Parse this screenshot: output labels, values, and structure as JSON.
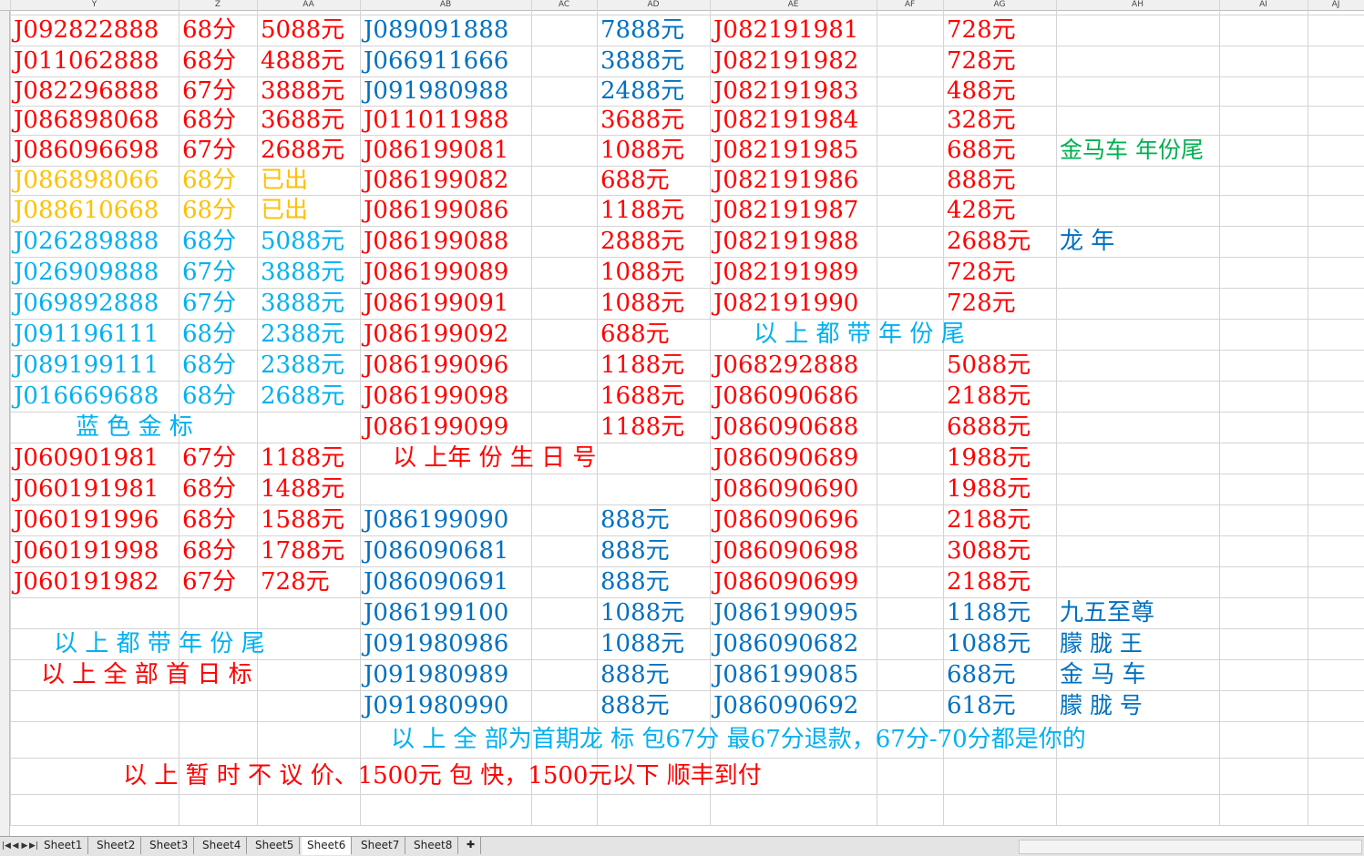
{
  "colors": {
    "red": "#ff0000",
    "blue": "#0070c0",
    "cyan": "#00b0f0",
    "yellow": "#ffc000",
    "green": "#00b050"
  },
  "columns": [
    "Y",
    "Z",
    "AA",
    "AB",
    "AC",
    "AD",
    "AE",
    "AF",
    "AG",
    "AH",
    "AI",
    "AJ"
  ],
  "rows": [
    {
      "Y": {
        "t": "J092822888",
        "c": "red"
      },
      "Z": {
        "t": "68分",
        "c": "red"
      },
      "AA": {
        "t": "5088元",
        "c": "red"
      },
      "AB": {
        "t": "J089091888",
        "c": "blue"
      },
      "AD": {
        "t": "7888元",
        "c": "blue"
      },
      "AE": {
        "t": "J082191981",
        "c": "red"
      },
      "AG": {
        "t": "728元",
        "c": "red"
      }
    },
    {
      "Y": {
        "t": "J011062888",
        "c": "red"
      },
      "Z": {
        "t": "68分",
        "c": "red"
      },
      "AA": {
        "t": "4888元",
        "c": "red"
      },
      "AB": {
        "t": "J066911666",
        "c": "blue"
      },
      "AD": {
        "t": "3888元",
        "c": "blue"
      },
      "AE": {
        "t": "J082191982",
        "c": "red"
      },
      "AG": {
        "t": "728元",
        "c": "red"
      }
    },
    {
      "Y": {
        "t": "J082296888",
        "c": "red"
      },
      "Z": {
        "t": "67分",
        "c": "red"
      },
      "AA": {
        "t": "3888元",
        "c": "red"
      },
      "AB": {
        "t": "J091980988",
        "c": "blue"
      },
      "AD": {
        "t": "2488元",
        "c": "blue"
      },
      "AE": {
        "t": "J082191983",
        "c": "red"
      },
      "AG": {
        "t": "488元",
        "c": "red"
      }
    },
    {
      "Y": {
        "t": "J086898068",
        "c": "red"
      },
      "Z": {
        "t": "68分",
        "c": "red"
      },
      "AA": {
        "t": "3688元",
        "c": "red"
      },
      "AB": {
        "t": "J011011988",
        "c": "red"
      },
      "AD": {
        "t": "3688元",
        "c": "red"
      },
      "AE": {
        "t": "J082191984",
        "c": "red"
      },
      "AG": {
        "t": "328元",
        "c": "red"
      }
    },
    {
      "Y": {
        "t": "J086096698",
        "c": "red"
      },
      "Z": {
        "t": "67分",
        "c": "red"
      },
      "AA": {
        "t": "2688元",
        "c": "red"
      },
      "AB": {
        "t": "J086199081",
        "c": "red"
      },
      "AD": {
        "t": "1088元",
        "c": "red"
      },
      "AE": {
        "t": "J082191985",
        "c": "red"
      },
      "AG": {
        "t": "688元",
        "c": "red"
      },
      "AH": {
        "t": "金马车 年份尾",
        "c": "green",
        "s": "small"
      }
    },
    {
      "Y": {
        "t": "J086898066",
        "c": "yellow"
      },
      "Z": {
        "t": "68分",
        "c": "yellow"
      },
      "AA": {
        "t": "已出",
        "c": "yellow"
      },
      "AB": {
        "t": "J086199082",
        "c": "red"
      },
      "AD": {
        "t": "688元",
        "c": "red"
      },
      "AE": {
        "t": "J082191986",
        "c": "red"
      },
      "AG": {
        "t": "888元",
        "c": "red"
      }
    },
    {
      "Y": {
        "t": "J088610668",
        "c": "yellow"
      },
      "Z": {
        "t": "68分",
        "c": "yellow"
      },
      "AA": {
        "t": "已出",
        "c": "yellow"
      },
      "AB": {
        "t": "J086199086",
        "c": "red"
      },
      "AD": {
        "t": "1188元",
        "c": "red"
      },
      "AE": {
        "t": "J082191987",
        "c": "red"
      },
      "AG": {
        "t": "428元",
        "c": "red"
      }
    },
    {
      "Y": {
        "t": "J026289888",
        "c": "cyan"
      },
      "Z": {
        "t": "68分",
        "c": "cyan"
      },
      "AA": {
        "t": "5088元",
        "c": "cyan"
      },
      "AB": {
        "t": "J086199088",
        "c": "red"
      },
      "AD": {
        "t": "2888元",
        "c": "red"
      },
      "AE": {
        "t": "J082191988",
        "c": "red"
      },
      "AG": {
        "t": "2688元",
        "c": "red"
      },
      "AH": {
        "t": "龙 年",
        "c": "blue"
      }
    },
    {
      "Y": {
        "t": "J026909888",
        "c": "cyan"
      },
      "Z": {
        "t": "67分",
        "c": "cyan"
      },
      "AA": {
        "t": "3888元",
        "c": "cyan"
      },
      "AB": {
        "t": "J086199089",
        "c": "red"
      },
      "AD": {
        "t": "1088元",
        "c": "red"
      },
      "AE": {
        "t": "J082191989",
        "c": "red"
      },
      "AG": {
        "t": "728元",
        "c": "red"
      }
    },
    {
      "Y": {
        "t": "J069892888",
        "c": "cyan"
      },
      "Z": {
        "t": "67分",
        "c": "cyan"
      },
      "AA": {
        "t": "3888元",
        "c": "cyan"
      },
      "AB": {
        "t": "J086199091",
        "c": "red"
      },
      "AD": {
        "t": "1088元",
        "c": "red"
      },
      "AE": {
        "t": "J082191990",
        "c": "red"
      },
      "AG": {
        "t": "728元",
        "c": "red"
      }
    },
    {
      "Y": {
        "t": "J091196111",
        "c": "cyan"
      },
      "Z": {
        "t": "68分",
        "c": "cyan"
      },
      "AA": {
        "t": "2388元",
        "c": "cyan"
      },
      "AB": {
        "t": "J086199092",
        "c": "red"
      },
      "AD": {
        "t": "688元",
        "c": "red"
      }
    },
    {
      "Y": {
        "t": "J089199111",
        "c": "cyan"
      },
      "Z": {
        "t": "68分",
        "c": "cyan"
      },
      "AA": {
        "t": "2388元",
        "c": "cyan"
      },
      "AB": {
        "t": "J086199096",
        "c": "red"
      },
      "AD": {
        "t": "1188元",
        "c": "red"
      },
      "AE": {
        "t": "J068292888",
        "c": "red"
      },
      "AG": {
        "t": "5088元",
        "c": "red"
      }
    },
    {
      "Y": {
        "t": "J016669688",
        "c": "cyan"
      },
      "Z": {
        "t": "68分",
        "c": "cyan"
      },
      "AA": {
        "t": "2688元",
        "c": "cyan"
      },
      "AB": {
        "t": "J086199098",
        "c": "red"
      },
      "AD": {
        "t": "1688元",
        "c": "red"
      },
      "AE": {
        "t": "J086090686",
        "c": "red"
      },
      "AG": {
        "t": "2188元",
        "c": "red"
      }
    },
    {
      "AB": {
        "t": "J086199099",
        "c": "red"
      },
      "AD": {
        "t": "1188元",
        "c": "red"
      },
      "AE": {
        "t": "J086090688",
        "c": "red"
      },
      "AG": {
        "t": "6888元",
        "c": "red"
      }
    },
    {
      "Y": {
        "t": "J060901981",
        "c": "red"
      },
      "Z": {
        "t": "67分",
        "c": "red"
      },
      "AA": {
        "t": "1188元",
        "c": "red"
      },
      "AE": {
        "t": "J086090689",
        "c": "red"
      },
      "AG": {
        "t": "1988元",
        "c": "red"
      }
    },
    {
      "Y": {
        "t": "J060191981",
        "c": "red"
      },
      "Z": {
        "t": "68分",
        "c": "red"
      },
      "AA": {
        "t": "1488元",
        "c": "red"
      },
      "AE": {
        "t": "J086090690",
        "c": "red"
      },
      "AG": {
        "t": "1988元",
        "c": "red"
      }
    },
    {
      "Y": {
        "t": "J060191996",
        "c": "red"
      },
      "Z": {
        "t": "68分",
        "c": "red"
      },
      "AA": {
        "t": "1588元",
        "c": "red"
      },
      "AB": {
        "t": "J086199090",
        "c": "blue"
      },
      "AD": {
        "t": "888元",
        "c": "blue"
      },
      "AE": {
        "t": "J086090696",
        "c": "red"
      },
      "AG": {
        "t": "2188元",
        "c": "red"
      }
    },
    {
      "Y": {
        "t": "J060191998",
        "c": "red"
      },
      "Z": {
        "t": "68分",
        "c": "red"
      },
      "AA": {
        "t": "1788元",
        "c": "red"
      },
      "AB": {
        "t": "J086090681",
        "c": "blue"
      },
      "AD": {
        "t": "888元",
        "c": "blue"
      },
      "AE": {
        "t": "J086090698",
        "c": "red"
      },
      "AG": {
        "t": "3088元",
        "c": "red"
      }
    },
    {
      "Y": {
        "t": "J060191982",
        "c": "red"
      },
      "Z": {
        "t": "67分",
        "c": "red"
      },
      "AA": {
        "t": "728元",
        "c": "red"
      },
      "AB": {
        "t": "J086090691",
        "c": "blue"
      },
      "AD": {
        "t": "888元",
        "c": "blue"
      },
      "AE": {
        "t": "J086090699",
        "c": "red"
      },
      "AG": {
        "t": "2188元",
        "c": "red"
      }
    },
    {
      "AB": {
        "t": "J086199100",
        "c": "blue"
      },
      "AD": {
        "t": "1088元",
        "c": "blue"
      },
      "AE": {
        "t": "J086199095",
        "c": "blue"
      },
      "AG": {
        "t": "1188元",
        "c": "blue"
      },
      "AH": {
        "t": "九五至尊",
        "c": "blue"
      }
    },
    {
      "AB": {
        "t": "J091980986",
        "c": "blue"
      },
      "AD": {
        "t": "1088元",
        "c": "blue"
      },
      "AE": {
        "t": "J086090682",
        "c": "blue"
      },
      "AG": {
        "t": "1088元",
        "c": "blue"
      },
      "AH": {
        "t": "朦 胧 王",
        "c": "blue",
        "s": "small"
      }
    },
    {
      "AB": {
        "t": "J091980989",
        "c": "blue"
      },
      "AD": {
        "t": "888元",
        "c": "blue"
      },
      "AE": {
        "t": "J086199085",
        "c": "blue"
      },
      "AG": {
        "t": "688元",
        "c": "blue"
      },
      "AH": {
        "t": "金 马 车",
        "c": "blue"
      }
    },
    {
      "AB": {
        "t": "J091980990",
        "c": "blue"
      },
      "AD": {
        "t": "888元",
        "c": "blue"
      },
      "AE": {
        "t": "J086090692",
        "c": "blue"
      },
      "AG": {
        "t": "618元",
        "c": "blue"
      },
      "AH": {
        "t": "朦 胧 号",
        "c": "blue",
        "s": "small"
      }
    },
    {},
    {},
    {}
  ],
  "notes": [
    {
      "id": "blue-gold-label",
      "t": "蓝 色 金 标",
      "c": "cyan",
      "row": 13,
      "col": "Y",
      "offset": 72
    },
    {
      "id": "year-birthday-note",
      "t": "以 上年 份 生 日 号",
      "c": "red",
      "row": 14,
      "col": "AB",
      "offset": 36
    },
    {
      "id": "year-tail-note-right",
      "t": "以 上 都 带 年 份  尾",
      "c": "cyan",
      "row": 10,
      "col": "AE",
      "offset": 48
    },
    {
      "id": "year-tail-note-left",
      "t": "以 上 都 带 年 份  尾",
      "c": "cyan",
      "row": 20,
      "col": "Y",
      "offset": 48
    },
    {
      "id": "first-day-note",
      "t": "以 上 全 部 首 日 标",
      "c": "red",
      "row": 21,
      "col": "Y",
      "offset": 34
    },
    {
      "id": "first-issue-note",
      "t": "以 上 全 部为首期龙 标 包67分 最67分退款，67分-70分都是你的",
      "c": "cyan",
      "row": 23,
      "col": "AB",
      "offset": 34
    },
    {
      "id": "no-bargain-note",
      "t": "以 上 暂 时 不 议 价、1500元 包 快，1500元以下  顺丰到付",
      "c": "red",
      "row": 24,
      "col": "Y",
      "offset": 124
    }
  ],
  "sheets": [
    "Sheet1",
    "Sheet2",
    "Sheet3",
    "Sheet4",
    "Sheet5",
    "Sheet6",
    "Sheet7",
    "Sheet8"
  ],
  "active_sheet": "Sheet6"
}
